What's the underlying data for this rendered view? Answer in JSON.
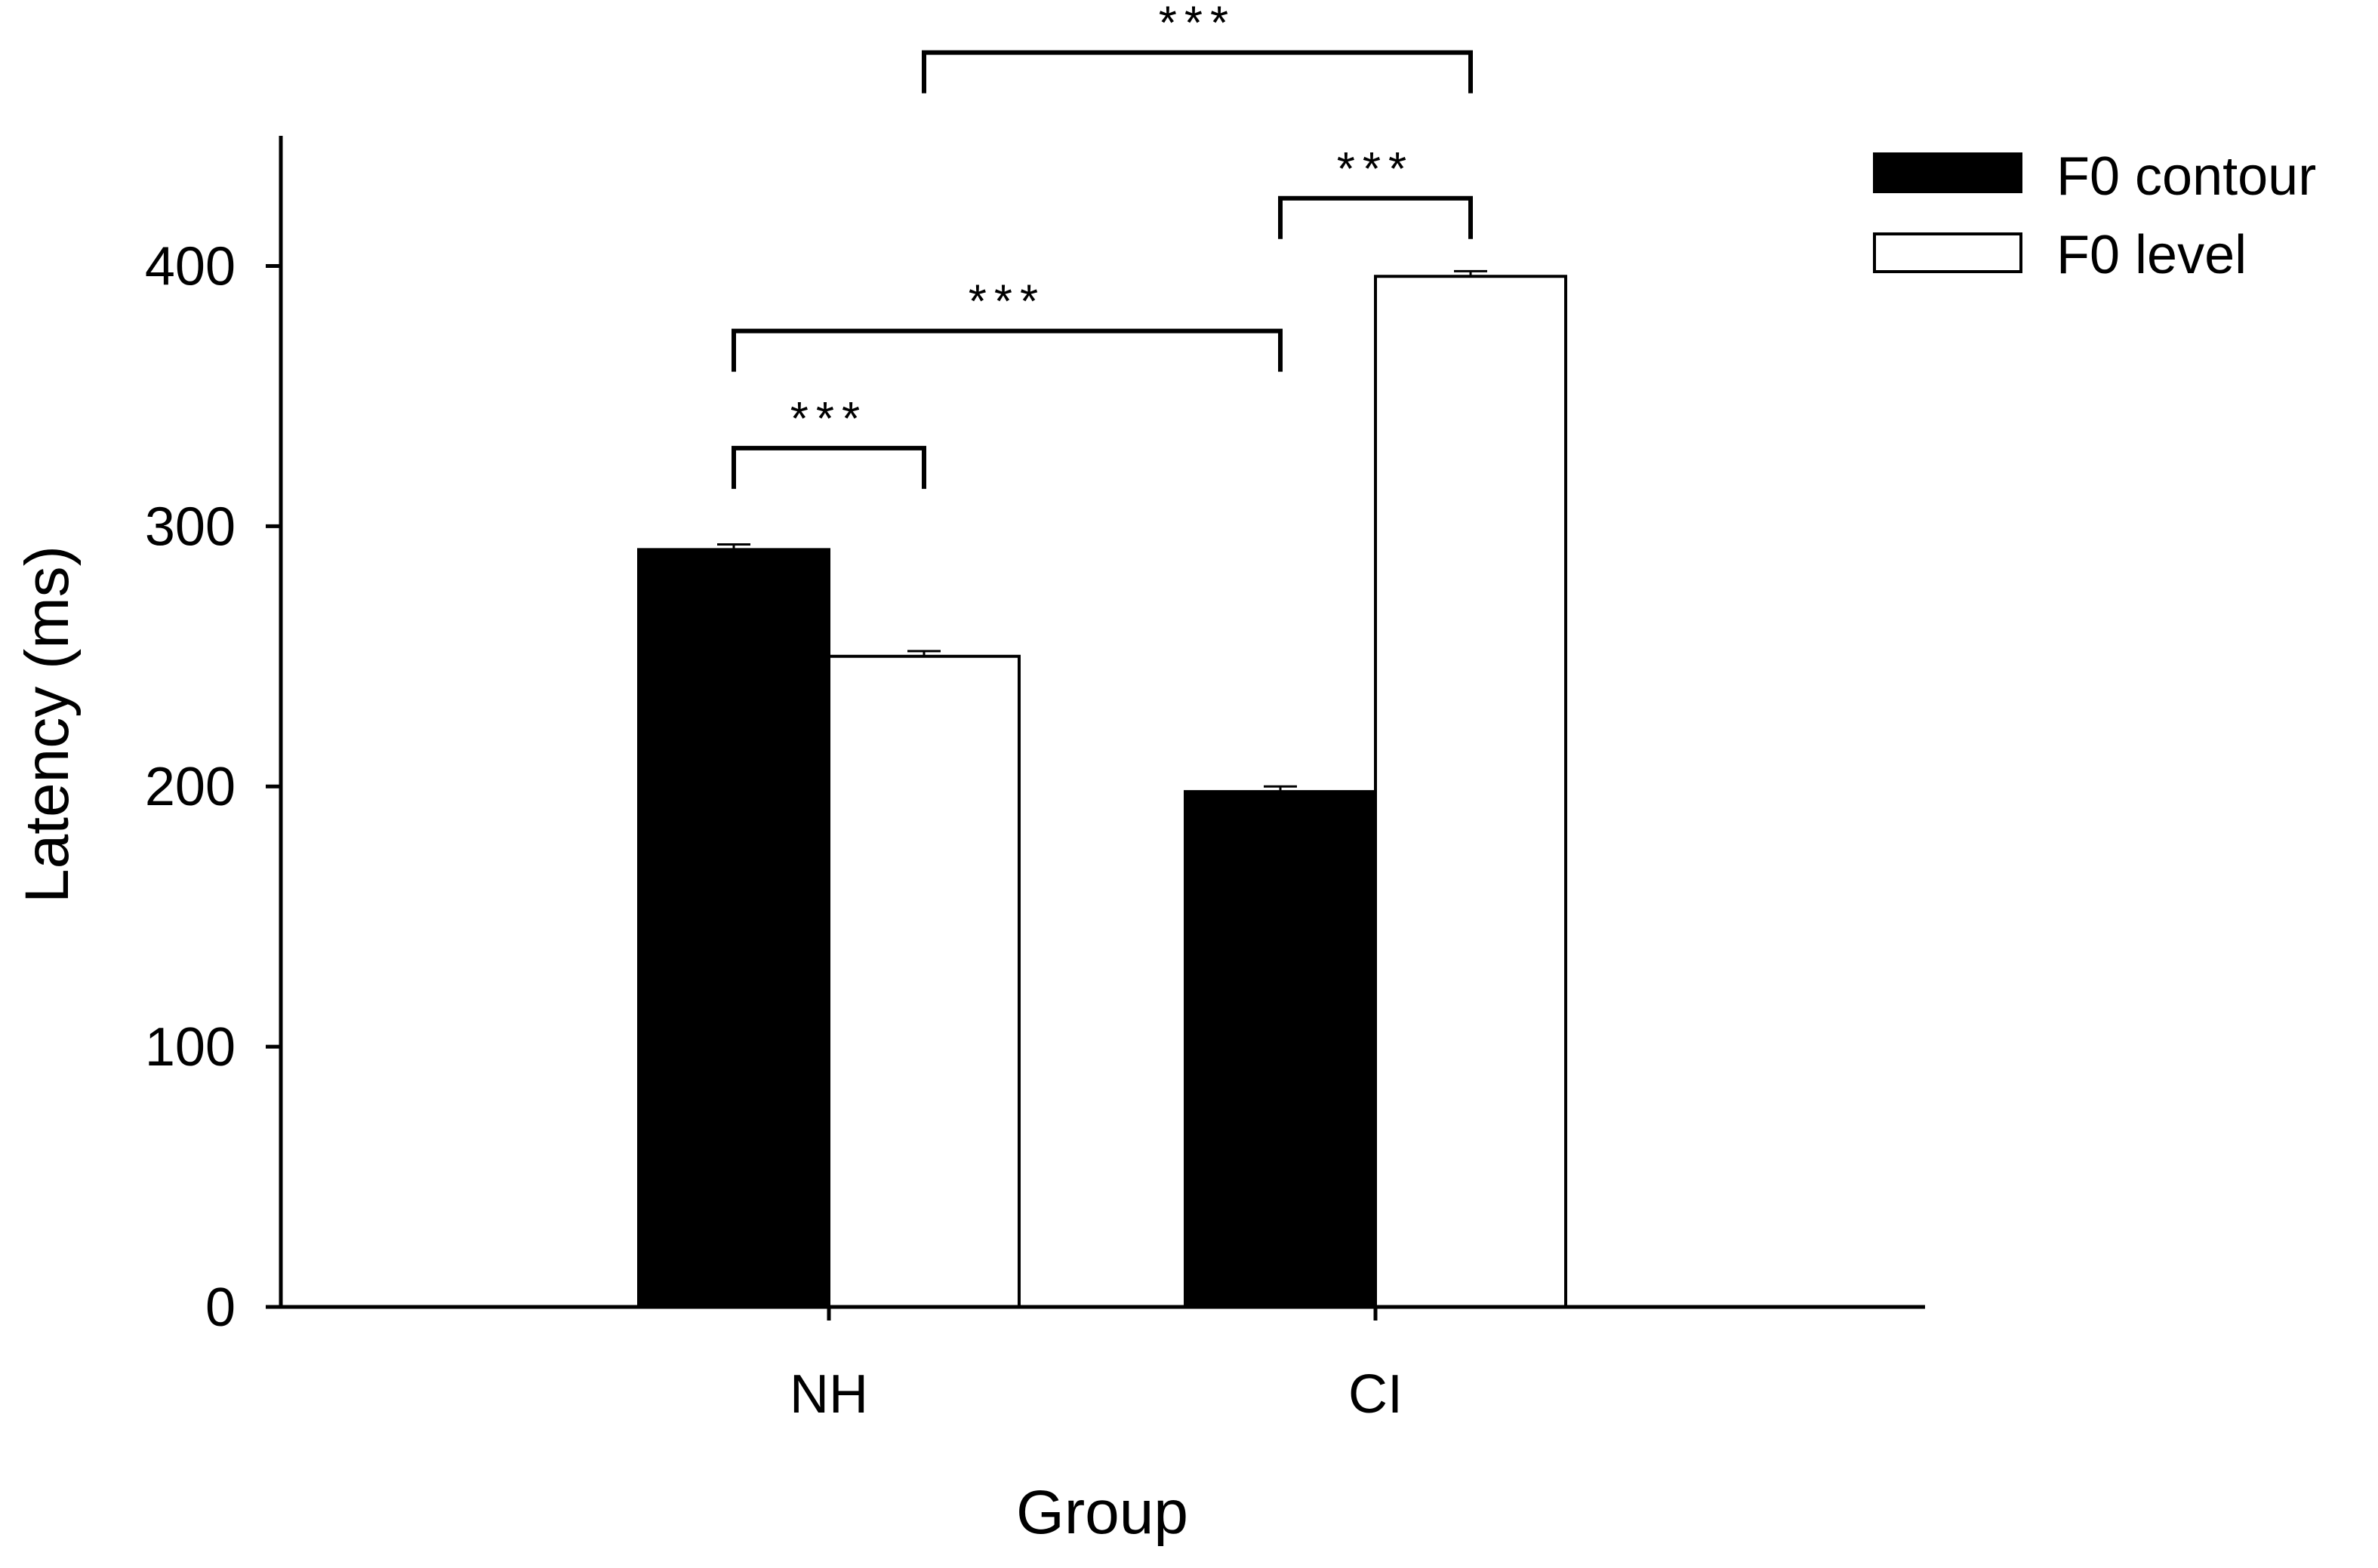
{
  "chart_data": {
    "type": "bar",
    "categories": [
      "NH",
      "CI"
    ],
    "series": [
      {
        "name": "F0 contour",
        "values": [
          291,
          198
        ],
        "errors": [
          2,
          2
        ],
        "fill": "#000000"
      },
      {
        "name": "F0 level",
        "values": [
          250,
          396
        ],
        "errors": [
          2,
          2
        ],
        "fill": "#ffffff"
      }
    ],
    "xlabel": "Group",
    "ylabel": "Latency (ms)",
    "ylim": [
      0,
      450
    ],
    "yticks": [
      0,
      100,
      200,
      300,
      400
    ],
    "grid": false,
    "legend_position": "top-right",
    "significance": [
      {
        "label": "***",
        "from": "NH|F0 contour",
        "to": "NH|F0 level",
        "y": 330
      },
      {
        "label": "***",
        "from": "NH|F0 contour",
        "to": "CI|F0 contour",
        "y": 375
      },
      {
        "label": "***",
        "from": "CI|F0 contour",
        "to": "CI|F0 level",
        "y": 426
      },
      {
        "label": "***",
        "from": "NH|F0 level",
        "to": "CI|F0 level",
        "y": 482
      }
    ]
  }
}
